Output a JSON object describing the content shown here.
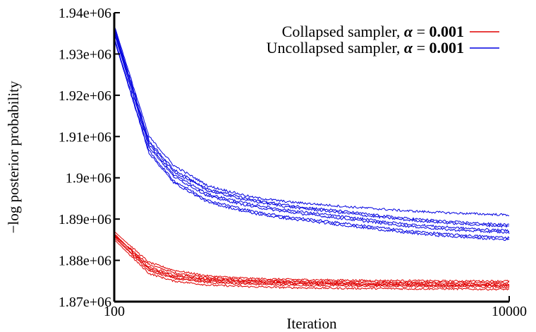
{
  "chart_data": {
    "type": "line",
    "title": "",
    "xlabel": "Iteration",
    "ylabel": "−log posterior probability",
    "x_scale": "log",
    "xlim": [
      100,
      10000
    ],
    "ylim": [
      1870000,
      1940000
    ],
    "x_ticks": [
      100,
      10000
    ],
    "x_tick_labels": [
      "100",
      "10000"
    ],
    "y_ticks": [
      1870000,
      1880000,
      1890000,
      1900000,
      1910000,
      1920000,
      1930000,
      1940000
    ],
    "y_tick_labels": [
      "1.87e+06",
      "1.88e+06",
      "1.89e+06",
      "1.9e+06",
      "1.91e+06",
      "1.92e+06",
      "1.93e+06",
      "1.94e+06"
    ],
    "grid": false,
    "legend_position": "top-right",
    "x": [
      100,
      150,
      200,
      300,
      500,
      750,
      1000,
      1500,
      2000,
      3000,
      5000,
      7500,
      10000
    ],
    "groups": [
      {
        "label_text": "Collapsed sampler, ",
        "label_symbol": "α",
        "label_eq": " = ",
        "label_value": "0.001",
        "color": "#e00000",
        "series": [
          {
            "values": [
              1886500,
              1878000,
              1876200,
              1875200,
              1874800,
              1874600,
              1874400,
              1874300,
              1874200,
              1874100,
              1874000,
              1874000,
              1873900
            ]
          },
          {
            "values": [
              1886000,
              1879000,
              1877000,
              1875800,
              1875200,
              1875000,
              1874900,
              1874800,
              1874800,
              1874700,
              1874700,
              1874600,
              1874600
            ]
          },
          {
            "values": [
              1885500,
              1877500,
              1875600,
              1874600,
              1874200,
              1874000,
              1873900,
              1873800,
              1873700,
              1873700,
              1873600,
              1873600,
              1873500
            ]
          },
          {
            "values": [
              1887000,
              1879500,
              1877600,
              1876200,
              1875600,
              1875400,
              1875300,
              1875200,
              1875100,
              1875100,
              1875000,
              1875000,
              1875000
            ]
          },
          {
            "values": [
              1885000,
              1876800,
              1875000,
              1874000,
              1873600,
              1873400,
              1873300,
              1873200,
              1873200,
              1873100,
              1873100,
              1873000,
              1873000
            ]
          },
          {
            "values": [
              1886200,
              1878400,
              1876500,
              1875400,
              1875000,
              1874800,
              1874600,
              1874500,
              1874400,
              1874400,
              1874300,
              1874300,
              1874200
            ]
          },
          {
            "values": [
              1885800,
              1877800,
              1875800,
              1874900,
              1874500,
              1874300,
              1874200,
              1874100,
              1874000,
              1874000,
              1873900,
              1873900,
              1873900
            ]
          }
        ]
      },
      {
        "label_text": "Uncollapsed sampler, ",
        "label_symbol": "α",
        "label_eq": " = ",
        "label_value": "0.001",
        "color": "#0000e0",
        "series": [
          {
            "values": [
              1937000,
              1910000,
              1903000,
              1898000,
              1895300,
              1894200,
              1893700,
              1893000,
              1892600,
              1892000,
              1891500,
              1891200,
              1891000
            ]
          },
          {
            "values": [
              1936000,
              1908500,
              1901500,
              1896800,
              1894300,
              1893000,
              1892300,
              1891400,
              1890700,
              1889800,
              1889000,
              1888500,
              1888200
            ]
          },
          {
            "values": [
              1935000,
              1907500,
              1900300,
              1895500,
              1893000,
              1891700,
              1891000,
              1890000,
              1889300,
              1888300,
              1887400,
              1887000,
              1886700
            ]
          },
          {
            "values": [
              1934000,
              1906500,
              1899300,
              1894500,
              1891900,
              1890600,
              1889900,
              1888900,
              1888200,
              1887200,
              1886300,
              1885800,
              1885500
            ]
          },
          {
            "values": [
              1935500,
              1908000,
              1900800,
              1896000,
              1893500,
              1892200,
              1891500,
              1890500,
              1889800,
              1888800,
              1888000,
              1887500,
              1887200
            ]
          },
          {
            "values": [
              1933500,
              1906000,
              1898800,
              1894000,
              1891400,
              1890100,
              1889400,
              1888400,
              1887700,
              1886700,
              1885800,
              1885300,
              1885000
            ]
          },
          {
            "values": [
              1936500,
              1909000,
              1902000,
              1897200,
              1894700,
              1893400,
              1892700,
              1891800,
              1891100,
              1890200,
              1889400,
              1888900,
              1888600
            ]
          }
        ]
      }
    ]
  }
}
